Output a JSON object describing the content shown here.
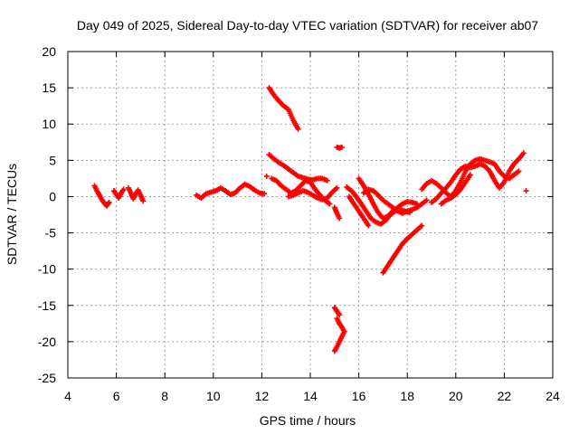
{
  "chart_data": {
    "type": "scatter",
    "title": "Day 049 of 2025, Sidereal Day-to-day VTEC variation (SDTVAR) for receiver ab07",
    "xlabel": "GPS time / hours",
    "ylabel": "SDTVAR / TECUs",
    "xlim": [
      4,
      24
    ],
    "ylim": [
      -25,
      20
    ],
    "xticks": [
      "4",
      "6",
      "8",
      "10",
      "12",
      "14",
      "16",
      "18",
      "20",
      "22",
      "24"
    ],
    "yticks": [
      "20",
      "15",
      "10",
      "5",
      "0",
      "-5",
      "-10",
      "-15",
      "-20",
      "-25"
    ],
    "grid": true,
    "legend": "none",
    "marker": "plus",
    "color": "#ff0000",
    "series": [
      {
        "segments": [
          [
            [
              5.1,
              1.5
            ],
            [
              5.2,
              0.8
            ],
            [
              5.3,
              0.2
            ],
            [
              5.4,
              -0.4
            ],
            [
              5.5,
              -0.9
            ],
            [
              5.6,
              -1.3
            ],
            [
              5.7,
              -0.8
            ]
          ],
          [
            [
              5.9,
              0.8
            ],
            [
              6.0,
              0.3
            ],
            [
              6.1,
              -0.2
            ],
            [
              6.2,
              0.5
            ],
            [
              6.3,
              1.0
            ]
          ],
          [
            [
              6.5,
              1.2
            ],
            [
              6.6,
              0.5
            ],
            [
              6.7,
              -0.3
            ],
            [
              6.8,
              0.4
            ],
            [
              6.9,
              0.9
            ],
            [
              7.0,
              0.2
            ],
            [
              7.1,
              -0.6
            ]
          ],
          [
            [
              9.3,
              0.2
            ],
            [
              9.5,
              -0.2
            ],
            [
              9.7,
              0.4
            ],
            [
              9.9,
              0.6
            ],
            [
              10.1,
              0.8
            ],
            [
              10.3,
              1.2
            ],
            [
              10.5,
              0.8
            ],
            [
              10.7,
              0.3
            ],
            [
              10.9,
              0.5
            ],
            [
              11.1,
              1.2
            ],
            [
              11.3,
              1.7
            ],
            [
              11.5,
              1.4
            ],
            [
              11.7,
              0.9
            ],
            [
              11.9,
              0.5
            ],
            [
              12.1,
              0.4
            ]
          ],
          [
            [
              12.3,
              15.0
            ],
            [
              12.5,
              14.0
            ],
            [
              12.7,
              13.2
            ],
            [
              12.9,
              12.5
            ],
            [
              13.1,
              12.0
            ],
            [
              13.3,
              10.5
            ],
            [
              13.5,
              9.3
            ]
          ],
          [
            [
              12.3,
              5.8
            ],
            [
              12.5,
              5.2
            ],
            [
              12.7,
              4.7
            ],
            [
              12.9,
              4.3
            ],
            [
              13.1,
              3.8
            ],
            [
              13.3,
              3.3
            ],
            [
              13.5,
              2.8
            ],
            [
              13.7,
              2.6
            ],
            [
              13.9,
              2.4
            ],
            [
              14.1,
              2.3
            ],
            [
              14.3,
              2.5
            ],
            [
              14.5,
              2.5
            ],
            [
              14.7,
              2.2
            ]
          ],
          [
            [
              12.4,
              2.5
            ],
            [
              12.6,
              2.2
            ],
            [
              12.8,
              1.5
            ],
            [
              13.0,
              1.0
            ],
            [
              13.2,
              0.5
            ],
            [
              13.4,
              0.8
            ],
            [
              13.6,
              1.5
            ],
            [
              13.8,
              2.2
            ],
            [
              14.0,
              2.0
            ],
            [
              14.2,
              1.0
            ],
            [
              14.4,
              0.2
            ],
            [
              14.6,
              -0.5
            ],
            [
              14.8,
              -1.0
            ]
          ],
          [
            [
              13.1,
              0.0
            ],
            [
              13.3,
              0.2
            ],
            [
              13.5,
              0.5
            ],
            [
              13.7,
              0.8
            ],
            [
              13.9,
              0.6
            ],
            [
              14.1,
              0.2
            ],
            [
              14.3,
              -0.2
            ],
            [
              14.5,
              -0.4
            ],
            [
              14.7,
              -0.2
            ],
            [
              14.9,
              0.6
            ],
            [
              15.1,
              1.2
            ]
          ],
          [
            [
              15.1,
              6.8
            ],
            [
              15.2,
              6.7
            ],
            [
              15.3,
              6.8
            ]
          ],
          [
            [
              15.0,
              -1.5
            ],
            [
              15.1,
              -2.3
            ],
            [
              15.2,
              -3.0
            ]
          ],
          [
            [
              15.0,
              -15.3
            ],
            [
              15.1,
              -15.8
            ],
            [
              15.2,
              -16.3
            ]
          ],
          [
            [
              15.1,
              -16.8
            ],
            [
              15.2,
              -17.5
            ],
            [
              15.3,
              -18.0
            ],
            [
              15.4,
              -18.6
            ],
            [
              15.3,
              -19.3
            ],
            [
              15.2,
              -20.0
            ],
            [
              15.1,
              -20.7
            ],
            [
              15.0,
              -21.3
            ]
          ],
          [
            [
              15.5,
              1.3
            ],
            [
              15.7,
              0.8
            ],
            [
              15.9,
              0.0
            ],
            [
              16.1,
              -1.0
            ],
            [
              16.3,
              -2.0
            ],
            [
              16.5,
              -3.0
            ],
            [
              16.7,
              -3.5
            ],
            [
              16.9,
              -3.8
            ],
            [
              17.1,
              -3.3
            ],
            [
              17.3,
              -2.5
            ],
            [
              17.5,
              -2.0
            ],
            [
              17.7,
              -1.8
            ],
            [
              17.9,
              -2.0
            ],
            [
              18.1,
              -2.2
            ]
          ],
          [
            [
              16.0,
              2.5
            ],
            [
              16.2,
              1.5
            ],
            [
              16.4,
              0.3
            ],
            [
              16.6,
              -1.0
            ],
            [
              16.8,
              -2.2
            ],
            [
              17.0,
              -3.0
            ],
            [
              17.2,
              -2.7
            ],
            [
              17.4,
              -2.0
            ],
            [
              17.6,
              -1.5
            ],
            [
              17.8,
              -1.0
            ],
            [
              18.0,
              -0.7
            ],
            [
              18.2,
              -0.8
            ],
            [
              18.4,
              -1.0
            ]
          ],
          [
            [
              15.6,
              0.0
            ],
            [
              15.8,
              -1.0
            ],
            [
              16.0,
              -2.0
            ],
            [
              16.2,
              -3.0
            ],
            [
              16.4,
              -4.0
            ]
          ],
          [
            [
              16.2,
              0.5
            ],
            [
              16.4,
              1.0
            ],
            [
              16.6,
              0.8
            ],
            [
              16.8,
              0.2
            ],
            [
              17.0,
              -0.5
            ],
            [
              17.2,
              -1.0
            ],
            [
              17.4,
              -1.5
            ],
            [
              17.6,
              -2.0
            ],
            [
              17.8,
              -2.3
            ],
            [
              18.0,
              -2.0
            ],
            [
              18.2,
              -1.8
            ],
            [
              18.4,
              -1.5
            ],
            [
              18.6,
              -1.0
            ],
            [
              18.8,
              -0.5
            ]
          ],
          [
            [
              17.0,
              -10.5
            ],
            [
              17.2,
              -9.5
            ],
            [
              17.4,
              -8.5
            ],
            [
              17.6,
              -7.5
            ],
            [
              17.8,
              -6.5
            ],
            [
              18.0,
              -5.8
            ],
            [
              18.2,
              -5.2
            ],
            [
              18.4,
              -4.6
            ],
            [
              18.6,
              -4.0
            ]
          ],
          [
            [
              18.6,
              1.0
            ],
            [
              18.8,
              1.8
            ],
            [
              19.0,
              2.2
            ],
            [
              19.2,
              1.8
            ],
            [
              19.4,
              1.2
            ],
            [
              19.6,
              0.5
            ],
            [
              19.8,
              0.0
            ],
            [
              20.0,
              0.8
            ],
            [
              20.2,
              2.0
            ],
            [
              20.4,
              3.5
            ],
            [
              20.6,
              4.5
            ],
            [
              20.8,
              5.0
            ],
            [
              21.0,
              5.2
            ],
            [
              21.2,
              5.0
            ],
            [
              21.4,
              4.8
            ],
            [
              21.6,
              4.5
            ],
            [
              21.8,
              3.5
            ],
            [
              22.0,
              2.8
            ],
            [
              22.2,
              2.5
            ],
            [
              22.4,
              3.0
            ],
            [
              22.6,
              3.5
            ]
          ],
          [
            [
              19.0,
              -0.8
            ],
            [
              19.2,
              -0.3
            ],
            [
              19.4,
              0.5
            ],
            [
              19.6,
              1.2
            ],
            [
              19.8,
              2.0
            ],
            [
              20.0,
              3.0
            ],
            [
              20.2,
              3.8
            ],
            [
              20.4,
              4.2
            ],
            [
              20.6,
              4.0
            ],
            [
              20.8,
              4.2
            ],
            [
              21.0,
              4.5
            ],
            [
              21.2,
              4.2
            ],
            [
              21.4,
              3.5
            ],
            [
              21.6,
              2.2
            ],
            [
              21.8,
              1.2
            ],
            [
              22.0,
              2.0
            ],
            [
              22.2,
              3.5
            ],
            [
              22.4,
              4.5
            ],
            [
              22.6,
              5.2
            ],
            [
              22.8,
              6.0
            ]
          ],
          [
            [
              19.4,
              -1.0
            ],
            [
              19.6,
              -0.5
            ],
            [
              19.8,
              -0.2
            ],
            [
              20.0,
              0.3
            ],
            [
              20.2,
              1.0
            ],
            [
              20.4,
              2.0
            ],
            [
              20.6,
              3.0
            ]
          ],
          [
            [
              12.2,
              2.8
            ]
          ],
          [
            [
              22.9,
              0.8
            ]
          ]
        ]
      }
    ]
  }
}
